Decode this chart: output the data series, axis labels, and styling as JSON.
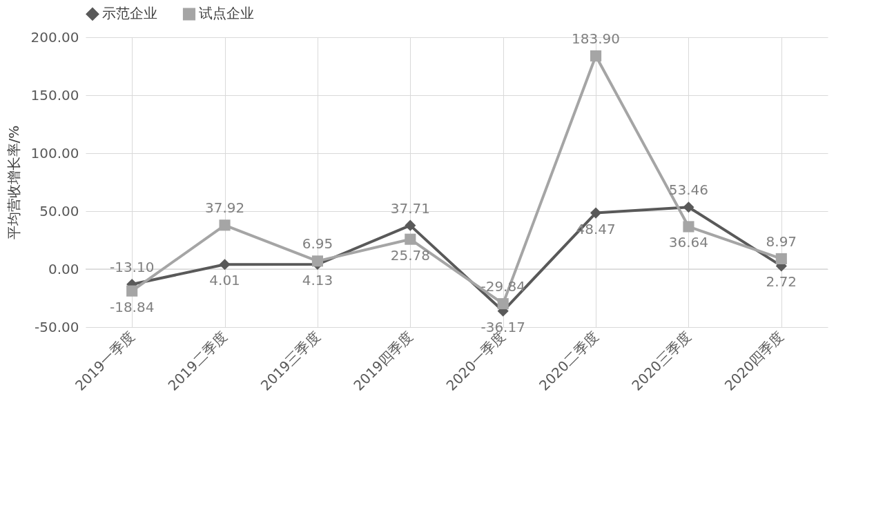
{
  "chart_data": {
    "type": "line",
    "ylabel": "平均营收增长率/%",
    "categories": [
      "2019一季度",
      "2019二季度",
      "2019三季度",
      "2019四季度",
      "2020一季度",
      "2020二季度",
      "2020三季度",
      "2020四季度"
    ],
    "series": [
      {
        "name": "示范企业",
        "color": "#595959",
        "marker": "diamond",
        "values": [
          -13.1,
          4.01,
          4.13,
          37.71,
          -36.17,
          48.47,
          53.46,
          2.72
        ],
        "value_labels": [
          "-13.10",
          "4.01",
          "4.13",
          "37.71",
          "-36.17",
          "48.47",
          "53.46",
          "2.72"
        ]
      },
      {
        "name": "试点企业",
        "color": "#a5a5a5",
        "marker": "square",
        "values": [
          -18.84,
          37.92,
          6.95,
          25.78,
          -29.84,
          183.9,
          36.64,
          8.97
        ],
        "value_labels": [
          "-18.84",
          "37.92",
          "6.95",
          "25.78",
          "-29.84",
          "183.90",
          "36.64",
          "8.97"
        ]
      }
    ],
    "ylim": [
      -50,
      200
    ],
    "yticks": [
      {
        "value": -50,
        "label": "-50.00"
      },
      {
        "value": 0,
        "label": "0.00"
      },
      {
        "value": 50,
        "label": "50.00"
      },
      {
        "value": 100,
        "label": "100.00"
      },
      {
        "value": 150,
        "label": "150.00"
      },
      {
        "value": 200,
        "label": "200.00"
      }
    ],
    "grid": true,
    "legend": "top"
  }
}
